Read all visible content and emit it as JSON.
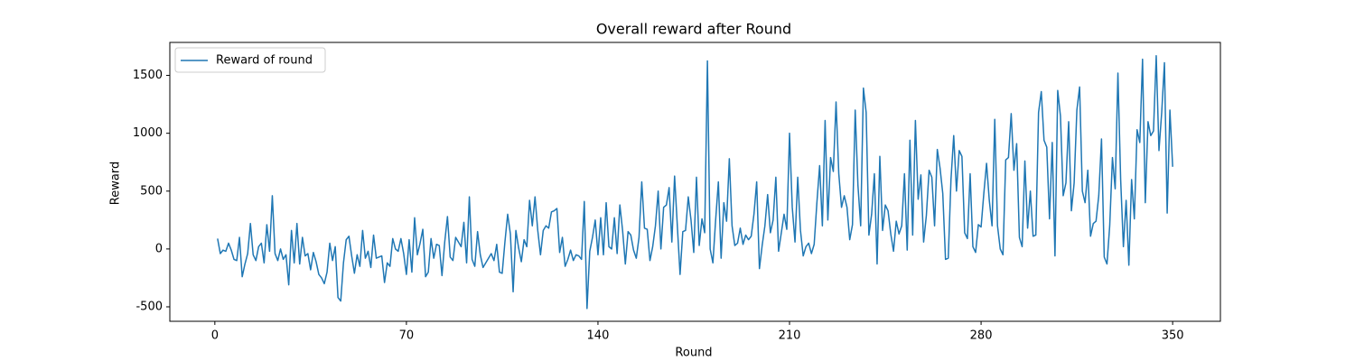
{
  "chart_data": {
    "type": "line",
    "title": "Overall reward after Round",
    "xlabel": "Round",
    "ylabel": "Reward",
    "x": [
      1,
      2,
      3,
      4,
      5,
      6,
      7,
      8,
      9,
      10,
      11,
      12,
      13,
      14,
      15,
      16,
      17,
      18,
      19,
      20,
      21,
      22,
      23,
      24,
      25,
      26,
      27,
      28,
      29,
      30,
      31,
      32,
      33,
      34,
      35,
      36,
      37,
      38,
      39,
      40,
      41,
      42,
      43,
      44,
      45,
      46,
      47,
      48,
      49,
      50,
      51,
      52,
      53,
      54,
      55,
      56,
      57,
      58,
      59,
      60,
      61,
      62,
      63,
      64,
      65,
      66,
      67,
      68,
      69,
      70,
      71,
      72,
      73,
      74,
      75,
      76,
      77,
      78,
      79,
      80,
      81,
      82,
      83,
      84,
      85,
      86,
      87,
      88,
      89,
      90,
      91,
      92,
      93,
      94,
      95,
      96,
      97,
      98,
      99,
      100,
      101,
      102,
      103,
      104,
      105,
      106,
      107,
      108,
      109,
      110,
      111,
      112,
      113,
      114,
      115,
      116,
      117,
      118,
      119,
      120,
      121,
      122,
      123,
      124,
      125,
      126,
      127,
      128,
      129,
      130,
      131,
      132,
      133,
      134,
      135,
      136,
      137,
      138,
      139,
      140,
      141,
      142,
      143,
      144,
      145,
      146,
      147,
      148,
      149,
      150,
      151,
      152,
      153,
      154,
      155,
      156,
      157,
      158,
      159,
      160,
      161,
      162,
      163,
      164,
      165,
      166,
      167,
      168,
      169,
      170,
      171,
      172,
      173,
      174,
      175,
      176,
      177,
      178,
      179,
      180,
      181,
      182,
      183,
      184,
      185,
      186,
      187,
      188,
      189,
      190,
      191,
      192,
      193,
      194,
      195,
      196,
      197,
      198,
      199,
      200,
      201,
      202,
      203,
      204,
      205,
      206,
      207,
      208,
      209,
      210,
      211,
      212,
      213,
      214,
      215,
      216,
      217,
      218,
      219,
      220,
      221,
      222,
      223,
      224,
      225,
      226,
      227,
      228,
      229,
      230,
      231,
      232,
      233,
      234,
      235,
      236,
      237,
      238,
      239,
      240,
      241,
      242,
      243,
      244,
      245,
      246,
      247,
      248,
      249,
      250,
      251,
      252,
      253,
      254,
      255,
      256,
      257,
      258,
      259,
      260,
      261,
      262,
      263,
      264,
      265,
      266,
      267,
      268,
      269,
      270,
      271,
      272,
      273,
      274,
      275,
      276,
      277,
      278,
      279,
      280,
      281,
      282,
      283,
      284,
      285,
      286,
      287,
      288,
      289,
      290,
      291,
      292,
      293,
      294,
      295,
      296,
      297,
      298,
      299,
      300,
      301,
      302,
      303,
      304,
      305,
      306,
      307,
      308,
      309,
      310,
      311,
      312,
      313,
      314,
      315,
      316,
      317,
      318,
      319,
      320,
      321,
      322,
      323,
      324,
      325,
      326,
      327,
      328,
      329,
      330,
      331,
      332,
      333,
      334,
      335,
      336,
      337,
      338,
      339,
      340,
      341,
      342,
      343,
      344,
      345,
      346,
      347,
      348,
      349,
      350
    ],
    "series": [
      {
        "name": "Reward of round",
        "color": "#1f77b4",
        "values": [
          90,
          -40,
          -10,
          -20,
          50,
          -10,
          -90,
          -100,
          100,
          -240,
          -130,
          -40,
          220,
          -50,
          -100,
          20,
          50,
          -120,
          210,
          -20,
          460,
          -40,
          -100,
          0,
          -90,
          -50,
          -310,
          160,
          -120,
          220,
          -130,
          100,
          -60,
          -40,
          -180,
          -30,
          -110,
          -220,
          -250,
          -300,
          -200,
          50,
          -100,
          20,
          -420,
          -450,
          -120,
          80,
          110,
          -60,
          -210,
          -50,
          -150,
          160,
          -80,
          -20,
          -160,
          120,
          -80,
          -70,
          -60,
          -290,
          -120,
          -150,
          90,
          0,
          -20,
          90,
          -40,
          -220,
          80,
          -200,
          270,
          -50,
          50,
          170,
          -240,
          -200,
          90,
          -80,
          40,
          30,
          -230,
          60,
          280,
          -70,
          -100,
          100,
          60,
          20,
          230,
          -120,
          450,
          -90,
          -150,
          150,
          -50,
          -160,
          -120,
          -80,
          -40,
          -100,
          40,
          -200,
          -210,
          60,
          300,
          130,
          -370,
          160,
          10,
          -110,
          80,
          20,
          420,
          200,
          450,
          160,
          -50,
          160,
          200,
          180,
          320,
          330,
          350,
          -30,
          100,
          -150,
          -90,
          -10,
          -100,
          -50,
          -60,
          -90,
          410,
          -515,
          -20,
          100,
          250,
          -50,
          270,
          -50,
          400,
          20,
          0,
          270,
          -40,
          380,
          160,
          -130,
          150,
          120,
          -10,
          -80,
          100,
          580,
          180,
          170,
          -100,
          20,
          200,
          500,
          0,
          360,
          380,
          530,
          60,
          630,
          200,
          -220,
          150,
          160,
          450,
          250,
          -30,
          620,
          30,
          260,
          140,
          1625,
          0,
          -120,
          250,
          580,
          -80,
          400,
          240,
          780,
          200,
          30,
          50,
          180,
          40,
          120,
          80,
          110,
          300,
          580,
          -170,
          30,
          200,
          470,
          140,
          250,
          620,
          -20,
          140,
          300,
          170,
          1000,
          360,
          60,
          620,
          160,
          -60,
          20,
          50,
          -40,
          40,
          400,
          720,
          200,
          1110,
          250,
          790,
          670,
          1270,
          650,
          360,
          460,
          360,
          80,
          210,
          1200,
          550,
          200,
          1390,
          1180,
          120,
          300,
          650,
          -130,
          800,
          160,
          380,
          330,
          130,
          -20,
          240,
          130,
          200,
          650,
          -10,
          940,
          120,
          1110,
          430,
          640,
          60,
          290,
          680,
          620,
          200,
          860,
          700,
          480,
          -90,
          -80,
          600,
          980,
          500,
          850,
          800,
          140,
          90,
          650,
          20,
          -30,
          210,
          190,
          480,
          740,
          420,
          200,
          1120,
          200,
          0,
          -50,
          770,
          790,
          1170,
          680,
          910,
          100,
          20,
          760,
          180,
          500,
          110,
          120,
          1180,
          1360,
          940,
          880,
          260,
          920,
          -60,
          1370,
          1150,
          460,
          570,
          1100,
          330,
          570,
          1200,
          1400,
          500,
          400,
          680,
          110,
          220,
          240,
          460,
          950,
          -70,
          -130,
          200,
          790,
          520,
          1520,
          600,
          20,
          420,
          -140,
          600,
          260,
          1030,
          920,
          1640,
          400,
          1100,
          980,
          1020,
          1670,
          850,
          1180,
          1610,
          310,
          1200,
          710
        ]
      }
    ],
    "xlim": [
      -16.45,
      367.45
    ],
    "ylim": [
      -625,
      1785
    ],
    "xticks": [
      0,
      70,
      140,
      210,
      280,
      350
    ],
    "yticks": [
      -500,
      0,
      500,
      1000,
      1500
    ],
    "legend": "upper left"
  }
}
